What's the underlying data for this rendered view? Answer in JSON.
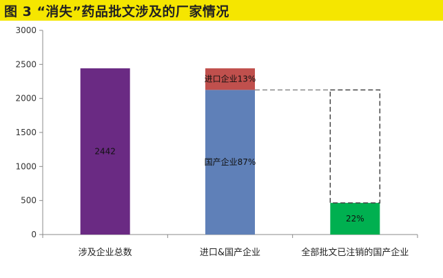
{
  "title": "图 3 “消失”药品批文涉及的厂家情况",
  "chart_data": {
    "type": "bar",
    "categories": [
      "涉及企业总数",
      "进口&国产企业",
      "全部批文已注销的国产企业"
    ],
    "ylim": [
      0,
      3000
    ],
    "yticks": [
      0,
      500,
      1000,
      1500,
      2000,
      2500,
      3000
    ],
    "grid": false,
    "bars": [
      {
        "category": "涉及企业总数",
        "segments": [
          {
            "start": 0,
            "end": 2442,
            "color": "#6a2a83",
            "label": "2442",
            "style": "solid"
          }
        ]
      },
      {
        "category": "进口&国产企业",
        "segments": [
          {
            "start": 0,
            "end": 2125,
            "color": "#5f80b8",
            "label": "国产企业87%",
            "style": "solid"
          },
          {
            "start": 2125,
            "end": 2442,
            "color": "#c0504d",
            "label": "进口企业13%",
            "style": "solid"
          }
        ]
      },
      {
        "category": "全部批文已注销的国产企业",
        "segments": [
          {
            "start": 0,
            "end": 465,
            "color": "#00b050",
            "label": "22%",
            "style": "solid"
          },
          {
            "start": 465,
            "end": 2125,
            "color": "none",
            "label": "",
            "style": "dashed"
          }
        ]
      }
    ],
    "connector": {
      "value": 2125,
      "from_category": 1,
      "to_category": 2,
      "style": "dashed"
    }
  }
}
